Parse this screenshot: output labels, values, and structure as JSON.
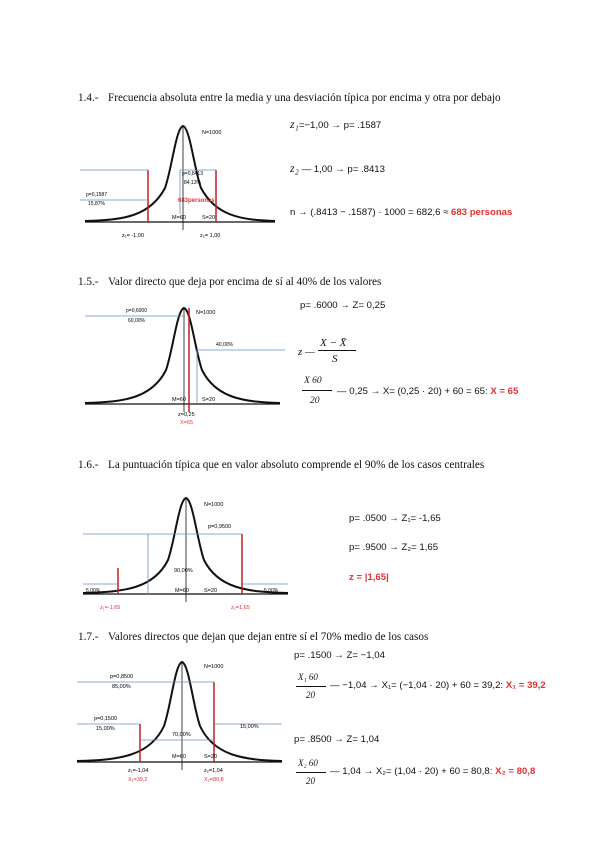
{
  "s14": {
    "heading_num": "1.4.-",
    "heading_text": "Frecuencia absoluta entre la media y una desviación típica por encima y otra por debajo",
    "graph": {
      "n": "N=1000",
      "p_right": "p=0,8413",
      "pct_right": "84,13%",
      "p_left": "p=0,1587",
      "pct_left": "15,87%",
      "personas": "683personas",
      "m": "M=60",
      "s": "S=20",
      "z1": "z₁= -1,00",
      "z2": "z₂= 1,00"
    },
    "eq1_var": "z₁",
    "eq1_rest": "=−1,00   →   p= .1587",
    "eq2_var": "z₂",
    "eq2_rest": "—  1,00   →   p= .8413",
    "eq3_text": "n  →  (.8413 − .1587) · 1000 = 682,6 ≈ ",
    "eq3_result": "683 personas"
  },
  "s15": {
    "heading_num": "1.5.-",
    "heading_text": "Valor directo que deja por encima de sí al 40% de los valores",
    "graph": {
      "p_left": "p=0,6000",
      "pct_left": "60,00%",
      "n": "N=1000",
      "pct_right": "40,00%",
      "m": "M=60",
      "s": "S=20",
      "z": "z=0,25",
      "x": "X=65"
    },
    "eq1": "p= .6000  →  Z= 0,25",
    "formula_z": "z",
    "formula_num": "X − X̄",
    "formula_den": "S",
    "frac_num": "X  60",
    "frac_den": "20",
    "eq2_text": "—  0,25  →  X= (0,25 · 20) + 60 = 65:  ",
    "eq2_result": "X = 65"
  },
  "s16": {
    "heading_num": "1.6.-",
    "heading_text": "La puntuación típica que en valor absoluto comprende el 90% de los casos centrales",
    "graph": {
      "n": "N=1000",
      "p_right": "p=0,9500",
      "pct_center": "90,00%",
      "pct_left": "5,00%",
      "pct_right": "5,00%",
      "m": "M=60",
      "s": "S=20",
      "z1": "z₁=-1,65",
      "z2": "z₂=1,65"
    },
    "eq1": "p= .0500  →  Z₁= -1,65",
    "eq2": "p= .9500  →  Z₂= 1,65",
    "eq3_result": "z = |1,65|"
  },
  "s17": {
    "heading_num": "1.7.-",
    "heading_text": "Valores directos que dejan que dejan entre sí el 70% medio de los casos",
    "graph": {
      "p_top": "p=0,8500",
      "pct_top": "85,00%",
      "n": "N=1000",
      "p_left": "p=0,1500",
      "pct_left": "15,00%",
      "pct_center": "70,00%",
      "pct_right": "15,00%",
      "m": "M=60",
      "s": "S=20",
      "z1": "z₁=-1,04",
      "z2": "z₂=1,04",
      "x1": "X₁=39,2",
      "x2": "X₂=80,8"
    },
    "eq1": "p= .1500  →  Z= −1,04",
    "frac1_num": "X₁  60",
    "frac1_den": "20",
    "eq2_text": "— −1,04  →  X₁= (−1,04 · 20) + 60 = 39,2:  ",
    "eq2_result": "X₁ = 39,2",
    "eq3": "p= .8500  →  Z= 1,04",
    "frac2_num": "X₂  60",
    "frac2_den": "20",
    "eq4_text": "— 1,04  →  X₂= (1,04 · 20) + 60 = 80,8:  ",
    "eq4_result": "X₂ = 80,8"
  }
}
